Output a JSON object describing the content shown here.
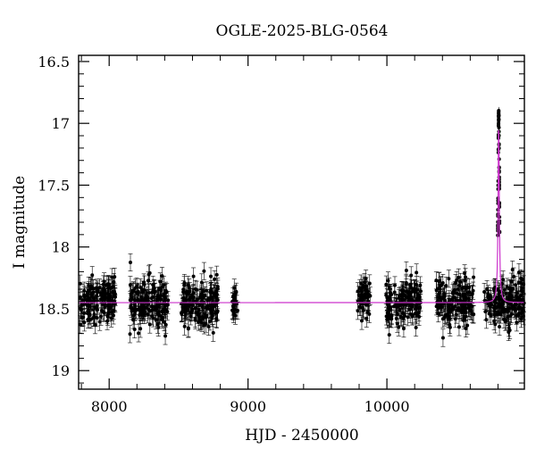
{
  "chart_data": {
    "type": "scatter",
    "title": "OGLE-2025-BLG-0564",
    "xlabel": "HJD - 2450000",
    "ylabel": "I magnitude",
    "xlim": [
      7780,
      10990
    ],
    "ylim": [
      19.15,
      16.45
    ],
    "y_inverted": true,
    "grid": false,
    "xticks": [
      8000,
      9000,
      10000
    ],
    "xtick_labels": [
      "8000",
      "9000",
      "10000"
    ],
    "yticks": [
      16.5,
      17,
      17.5,
      18,
      18.5,
      19
    ],
    "ytick_labels": [
      "16.5",
      "17",
      "17.5",
      "18",
      "18.5",
      "19"
    ],
    "point_color": "#000000",
    "model_color": "#cc33cc",
    "baseline_magnitude": 18.45,
    "typical_error": 0.07,
    "seasons": [
      {
        "start": 7790,
        "end": 8045,
        "mean": 18.44,
        "scatter": 0.16
      },
      {
        "start": 8150,
        "end": 8425,
        "mean": 18.45,
        "scatter": 0.17
      },
      {
        "start": 8520,
        "end": 8790,
        "mean": 18.45,
        "scatter": 0.16
      },
      {
        "start": 8885,
        "end": 8925,
        "mean": 18.47,
        "scatter": 0.14
      },
      {
        "start": 9790,
        "end": 9880,
        "mean": 18.4,
        "scatter": 0.17
      },
      {
        "start": 9990,
        "end": 10245,
        "mean": 18.44,
        "scatter": 0.16
      },
      {
        "start": 10355,
        "end": 10625,
        "mean": 18.44,
        "scatter": 0.17
      },
      {
        "start": 10700,
        "end": 10990,
        "mean": 18.45,
        "scatter": 0.17
      }
    ],
    "event": {
      "t0": 10805,
      "peak_magnitude": 16.92,
      "tE": 5
    },
    "model": {
      "name": "",
      "baseline": 18.45,
      "t0": 10805,
      "peak_magnitude": 16.92,
      "width_days": 5
    }
  }
}
